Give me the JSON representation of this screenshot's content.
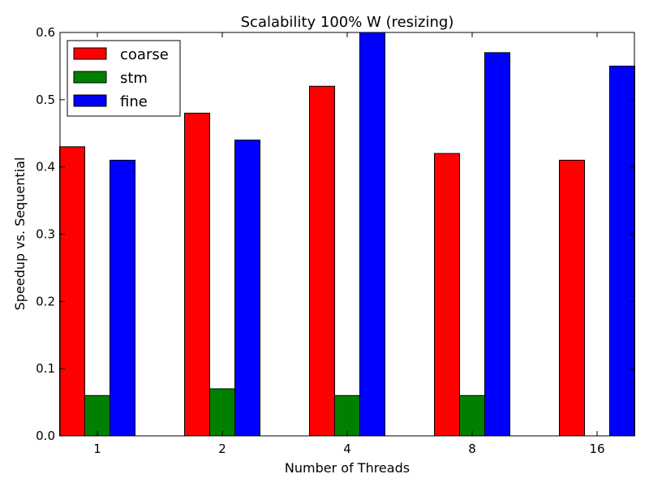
{
  "chart_data": {
    "type": "bar",
    "title": "Scalability 100% W (resizing)",
    "xlabel": "Number of Threads",
    "ylabel": "Speedup vs. Sequential",
    "categories": [
      "1",
      "2",
      "4",
      "8",
      "16"
    ],
    "ylim": [
      0,
      0.6
    ],
    "yticks": [
      "0.0",
      "0.1",
      "0.2",
      "0.3",
      "0.4",
      "0.5",
      "0.6"
    ],
    "grid": false,
    "legend_position": "top-left",
    "series": [
      {
        "name": "coarse",
        "color": "#ff0000",
        "values": [
          0.43,
          0.48,
          0.52,
          0.42,
          0.41
        ]
      },
      {
        "name": "stm",
        "color": "#008000",
        "values": [
          0.06,
          0.07,
          0.06,
          0.06,
          0
        ]
      },
      {
        "name": "fine",
        "color": "#0000ff",
        "values": [
          0.41,
          0.44,
          0.6,
          0.57,
          0.55
        ]
      }
    ]
  }
}
